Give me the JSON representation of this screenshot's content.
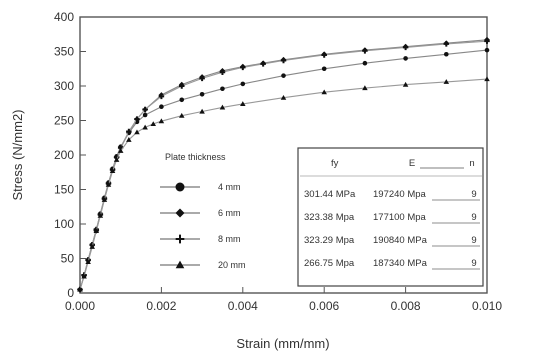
{
  "chart_data": {
    "type": "line",
    "title": "",
    "xlabel": "Strain (mm/mm)",
    "ylabel": "Stress (N/mm2)",
    "xlim": [
      0,
      0.01
    ],
    "ylim": [
      0,
      400
    ],
    "x_ticks": [
      "0.000",
      "0.002",
      "0.004",
      "0.006",
      "0.008",
      "0.010"
    ],
    "y_ticks": [
      "0",
      "50",
      "100",
      "150",
      "200",
      "250",
      "300",
      "350",
      "400"
    ],
    "grid": false,
    "legend_title": "Plate thickness",
    "legend_position": "center",
    "series": [
      {
        "name": "4 mm",
        "marker": "circle",
        "points": [
          [
            0.0,
            5
          ],
          [
            0.0001,
            25
          ],
          [
            0.0002,
            48
          ],
          [
            0.0003,
            70
          ],
          [
            0.0004,
            92
          ],
          [
            0.0005,
            115
          ],
          [
            0.0006,
            138
          ],
          [
            0.0007,
            160
          ],
          [
            0.0008,
            180
          ],
          [
            0.0009,
            198
          ],
          [
            0.001,
            212
          ],
          [
            0.0012,
            232
          ],
          [
            0.0014,
            248
          ],
          [
            0.0016,
            258
          ],
          [
            0.002,
            270
          ],
          [
            0.0025,
            280
          ],
          [
            0.003,
            288
          ],
          [
            0.0035,
            296
          ],
          [
            0.004,
            303
          ],
          [
            0.005,
            315
          ],
          [
            0.006,
            325
          ],
          [
            0.007,
            333
          ],
          [
            0.008,
            340
          ],
          [
            0.009,
            346
          ],
          [
            0.01,
            352
          ]
        ]
      },
      {
        "name": "6 mm",
        "marker": "diamond",
        "points": [
          [
            0.0,
            5
          ],
          [
            0.0001,
            25
          ],
          [
            0.0002,
            47
          ],
          [
            0.0003,
            69
          ],
          [
            0.0004,
            90
          ],
          [
            0.0005,
            113
          ],
          [
            0.0006,
            136
          ],
          [
            0.0007,
            158
          ],
          [
            0.0008,
            178
          ],
          [
            0.0009,
            196
          ],
          [
            0.001,
            210
          ],
          [
            0.0012,
            233
          ],
          [
            0.0014,
            252
          ],
          [
            0.0016,
            266
          ],
          [
            0.002,
            287
          ],
          [
            0.0025,
            302
          ],
          [
            0.003,
            313
          ],
          [
            0.0035,
            322
          ],
          [
            0.004,
            328
          ],
          [
            0.0045,
            333
          ],
          [
            0.005,
            338
          ],
          [
            0.006,
            346
          ],
          [
            0.007,
            352
          ],
          [
            0.008,
            357
          ],
          [
            0.009,
            362
          ],
          [
            0.01,
            367
          ]
        ]
      },
      {
        "name": "8 mm",
        "marker": "cross",
        "points": [
          [
            0.0,
            5
          ],
          [
            0.0001,
            26
          ],
          [
            0.0002,
            48
          ],
          [
            0.0003,
            70
          ],
          [
            0.0004,
            92
          ],
          [
            0.0005,
            114
          ],
          [
            0.0006,
            137
          ],
          [
            0.0007,
            159
          ],
          [
            0.0008,
            179
          ],
          [
            0.0009,
            197
          ],
          [
            0.001,
            211
          ],
          [
            0.0012,
            234
          ],
          [
            0.0014,
            252
          ],
          [
            0.0016,
            266
          ],
          [
            0.002,
            285
          ],
          [
            0.0025,
            300
          ],
          [
            0.003,
            311
          ],
          [
            0.0035,
            320
          ],
          [
            0.004,
            327
          ],
          [
            0.0045,
            332
          ],
          [
            0.005,
            337
          ],
          [
            0.006,
            345
          ],
          [
            0.007,
            351
          ],
          [
            0.008,
            356
          ],
          [
            0.009,
            361
          ],
          [
            0.01,
            365
          ]
        ]
      },
      {
        "name": "20 mm",
        "marker": "triangle",
        "points": [
          [
            0.0,
            5
          ],
          [
            0.0001,
            24
          ],
          [
            0.0002,
            45
          ],
          [
            0.0003,
            67
          ],
          [
            0.0004,
            90
          ],
          [
            0.0005,
            112
          ],
          [
            0.0006,
            135
          ],
          [
            0.0007,
            157
          ],
          [
            0.0008,
            177
          ],
          [
            0.0009,
            193
          ],
          [
            0.001,
            206
          ],
          [
            0.0012,
            222
          ],
          [
            0.0014,
            233
          ],
          [
            0.0016,
            240
          ],
          [
            0.0018,
            245
          ],
          [
            0.002,
            249
          ],
          [
            0.0025,
            257
          ],
          [
            0.003,
            263
          ],
          [
            0.0035,
            269
          ],
          [
            0.004,
            274
          ],
          [
            0.005,
            283
          ],
          [
            0.006,
            291
          ],
          [
            0.007,
            297
          ],
          [
            0.008,
            302
          ],
          [
            0.009,
            306
          ],
          [
            0.01,
            310
          ]
        ]
      }
    ],
    "table": {
      "headers": [
        "fy",
        "E",
        "n"
      ],
      "rows": [
        [
          "301.44 MPa",
          "197240 Mpa",
          "9"
        ],
        [
          "323.38 Mpa",
          "177100 Mpa",
          "9"
        ],
        [
          "323.29 Mpa",
          "190840 MPa",
          "9"
        ],
        [
          "266.75 Mpa",
          "187340 MPa",
          "9"
        ]
      ]
    }
  }
}
